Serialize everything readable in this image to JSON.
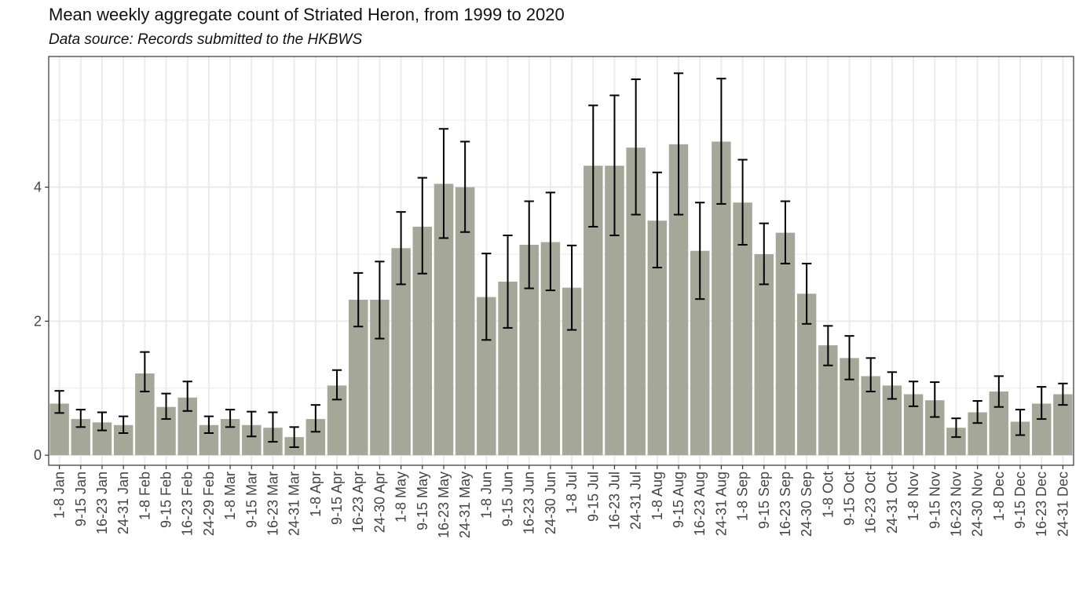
{
  "chart_data": {
    "type": "bar",
    "title": "Mean weekly aggregate count of Striated Heron, from 1999 to 2020",
    "subtitle": "Data source: Records submitted to the HKBWS",
    "xlabel": "",
    "ylabel": "",
    "ylim": [
      -0.15,
      5.95
    ],
    "yticks": [
      0,
      2,
      4
    ],
    "grid": true,
    "colors": {
      "bar": "#a5a898",
      "error_bar": "#000000",
      "grid": "#ebebeb",
      "panel_border": "#333333",
      "axis_text": "#444444"
    },
    "categories": [
      "1-8 Jan",
      "9-15 Jan",
      "16-23 Jan",
      "24-31 Jan",
      "1-8 Feb",
      "9-15 Feb",
      "16-23 Feb",
      "24-29 Feb",
      "1-8 Mar",
      "9-15 Mar",
      "16-23 Mar",
      "24-31 Mar",
      "1-8 Apr",
      "9-15 Apr",
      "16-23 Apr",
      "24-30 Apr",
      "1-8 May",
      "9-15 May",
      "16-23 May",
      "24-31 May",
      "1-8 Jun",
      "9-15 Jun",
      "16-23 Jun",
      "24-30 Jun",
      "1-8 Jul",
      "9-15 Jul",
      "16-23 Jul",
      "24-31 Jul",
      "1-8 Aug",
      "9-15 Aug",
      "16-23 Aug",
      "24-31 Aug",
      "1-8 Sep",
      "9-15 Sep",
      "16-23 Sep",
      "24-30 Sep",
      "1-8 Oct",
      "9-15 Oct",
      "16-23 Oct",
      "24-31 Oct",
      "1-8 Nov",
      "9-15 Nov",
      "16-23 Nov",
      "24-30 Nov",
      "1-8 Dec",
      "9-15 Dec",
      "16-23 Dec",
      "24-31 Dec"
    ],
    "values": [
      0.77,
      0.54,
      0.49,
      0.45,
      1.22,
      0.72,
      0.86,
      0.45,
      0.54,
      0.45,
      0.41,
      0.27,
      0.54,
      1.04,
      2.32,
      2.32,
      3.09,
      3.41,
      4.05,
      4.0,
      2.36,
      2.59,
      3.14,
      3.18,
      2.5,
      4.32,
      4.32,
      4.59,
      3.5,
      4.64,
      3.05,
      4.68,
      3.77,
      3.0,
      3.32,
      2.41,
      1.64,
      1.45,
      1.18,
      1.04,
      0.91,
      0.82,
      0.41,
      0.64,
      0.95,
      0.5,
      0.77,
      0.91
    ],
    "error_low": [
      0.63,
      0.42,
      0.37,
      0.33,
      0.95,
      0.54,
      0.66,
      0.33,
      0.42,
      0.28,
      0.2,
      0.12,
      0.35,
      0.83,
      1.92,
      1.74,
      2.55,
      2.71,
      3.24,
      3.33,
      1.72,
      1.9,
      2.49,
      2.46,
      1.87,
      3.41,
      3.28,
      3.59,
      2.8,
      3.59,
      2.33,
      3.75,
      3.14,
      2.55,
      2.86,
      1.96,
      1.34,
      1.13,
      0.95,
      0.84,
      0.73,
      0.57,
      0.27,
      0.48,
      0.72,
      0.3,
      0.54,
      0.75
    ],
    "error_high": [
      0.96,
      0.68,
      0.64,
      0.58,
      1.54,
      0.92,
      1.1,
      0.58,
      0.68,
      0.65,
      0.64,
      0.42,
      0.75,
      1.27,
      2.72,
      2.89,
      3.63,
      4.14,
      4.87,
      4.68,
      3.01,
      3.28,
      3.79,
      3.92,
      3.13,
      5.22,
      5.37,
      5.61,
      4.22,
      5.7,
      3.77,
      5.62,
      4.41,
      3.46,
      3.79,
      2.86,
      1.93,
      1.78,
      1.45,
      1.24,
      1.1,
      1.09,
      0.55,
      0.81,
      1.18,
      0.68,
      1.02,
      1.07
    ]
  }
}
